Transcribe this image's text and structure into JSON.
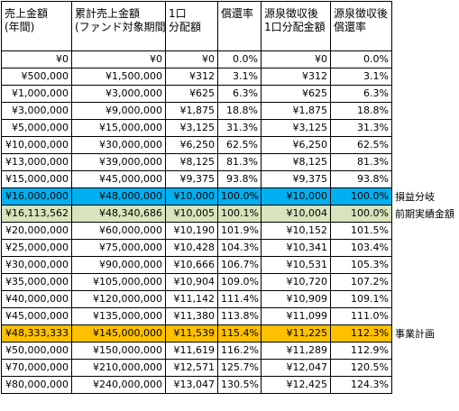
{
  "headers": [
    [
      "売上金額",
      "(年間)"
    ],
    [
      "累計売上金額",
      "(ファンド対象期間)"
    ],
    [
      "1口",
      "分配額"
    ],
    [
      "償還率"
    ],
    [
      "源泉徴収後",
      "1口分配金額"
    ],
    [
      "源泉徴収後",
      "償還率"
    ]
  ],
  "rows": [
    {
      "cells": [
        "¥0",
        "¥0",
        "¥0",
        "0.0%",
        "¥0",
        "0.0%"
      ],
      "highlight": "",
      "note": ""
    },
    {
      "cells": [
        "¥500,000",
        "¥1,500,000",
        "¥312",
        "3.1%",
        "¥312",
        "3.1%"
      ],
      "highlight": "",
      "note": ""
    },
    {
      "cells": [
        "¥1,000,000",
        "¥3,000,000",
        "¥625",
        "6.3%",
        "¥625",
        "6.3%"
      ],
      "highlight": "",
      "note": ""
    },
    {
      "cells": [
        "¥3,000,000",
        "¥9,000,000",
        "¥1,875",
        "18.8%",
        "¥1,875",
        "18.8%"
      ],
      "highlight": "",
      "note": ""
    },
    {
      "cells": [
        "¥5,000,000",
        "¥15,000,000",
        "¥3,125",
        "31.3%",
        "¥3,125",
        "31.3%"
      ],
      "highlight": "",
      "note": ""
    },
    {
      "cells": [
        "¥10,000,000",
        "¥30,000,000",
        "¥6,250",
        "62.5%",
        "¥6,250",
        "62.5%"
      ],
      "highlight": "",
      "note": ""
    },
    {
      "cells": [
        "¥13,000,000",
        "¥39,000,000",
        "¥8,125",
        "81.3%",
        "¥8,125",
        "81.3%"
      ],
      "highlight": "",
      "note": ""
    },
    {
      "cells": [
        "¥15,000,000",
        "¥45,000,000",
        "¥9,375",
        "93.8%",
        "¥9,375",
        "93.8%"
      ],
      "highlight": "",
      "note": ""
    },
    {
      "cells": [
        "¥16,000,000",
        "¥48,000,000",
        "¥10,000",
        "100.0%",
        "¥10,000",
        "100.0%"
      ],
      "highlight": "blue",
      "note": "損益分岐"
    },
    {
      "cells": [
        "¥16,113,562",
        "¥48,340,686",
        "¥10,005",
        "100.1%",
        "¥10,004",
        "100.0%"
      ],
      "highlight": "green",
      "note": "前期実績金額"
    },
    {
      "cells": [
        "¥20,000,000",
        "¥60,000,000",
        "¥10,190",
        "101.9%",
        "¥10,152",
        "101.5%"
      ],
      "highlight": "",
      "note": ""
    },
    {
      "cells": [
        "¥25,000,000",
        "¥75,000,000",
        "¥10,428",
        "104.3%",
        "¥10,341",
        "103.4%"
      ],
      "highlight": "",
      "note": ""
    },
    {
      "cells": [
        "¥30,000,000",
        "¥90,000,000",
        "¥10,666",
        "106.7%",
        "¥10,531",
        "105.3%"
      ],
      "highlight": "",
      "note": ""
    },
    {
      "cells": [
        "¥35,000,000",
        "¥105,000,000",
        "¥10,904",
        "109.0%",
        "¥10,720",
        "107.2%"
      ],
      "highlight": "",
      "note": ""
    },
    {
      "cells": [
        "¥40,000,000",
        "¥120,000,000",
        "¥11,142",
        "111.4%",
        "¥10,909",
        "109.1%"
      ],
      "highlight": "",
      "note": ""
    },
    {
      "cells": [
        "¥45,000,000",
        "¥135,000,000",
        "¥11,380",
        "113.8%",
        "¥11,099",
        "111.0%"
      ],
      "highlight": "",
      "note": ""
    },
    {
      "cells": [
        "¥48,333,333",
        "¥145,000,000",
        "¥11,539",
        "115.4%",
        "¥11,225",
        "112.3%"
      ],
      "highlight": "orange",
      "note": "事業計画"
    },
    {
      "cells": [
        "¥50,000,000",
        "¥150,000,000",
        "¥11,619",
        "116.2%",
        "¥11,289",
        "112.9%"
      ],
      "highlight": "",
      "note": ""
    },
    {
      "cells": [
        "¥70,000,000",
        "¥210,000,000",
        "¥12,571",
        "125.7%",
        "¥12,047",
        "120.5%"
      ],
      "highlight": "",
      "note": ""
    },
    {
      "cells": [
        "¥80,000,000",
        "¥240,000,000",
        "¥13,047",
        "130.5%",
        "¥12,425",
        "124.3%"
      ],
      "highlight": "",
      "note": ""
    }
  ],
  "colors": {
    "blue": "#00b0f0",
    "green": "#d8e4bc",
    "orange": "#ffc000"
  }
}
